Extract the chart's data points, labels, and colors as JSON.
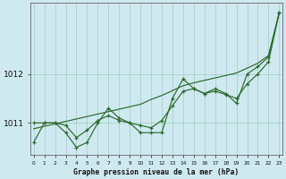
{
  "xlabel": "Graphe pression niveau de la mer (hPa)",
  "bg_color": "#cfe9f0",
  "grid_color": "#9dcfbd",
  "line_color": "#2d6a2d",
  "x_hours": [
    0,
    1,
    2,
    3,
    4,
    5,
    6,
    7,
    8,
    9,
    10,
    11,
    12,
    13,
    14,
    15,
    16,
    17,
    18,
    19,
    20,
    21,
    22,
    23
  ],
  "pressure_raw": [
    1010.6,
    1011.0,
    1011.0,
    1010.8,
    1010.5,
    1010.6,
    1011.0,
    1011.3,
    1011.1,
    1011.0,
    1010.8,
    1010.8,
    1010.8,
    1011.5,
    1011.9,
    1011.7,
    1011.6,
    1011.7,
    1011.6,
    1011.4,
    1012.0,
    1012.15,
    1012.35,
    1013.25
  ],
  "pressure_smooth": [
    1011.0,
    1011.0,
    1011.0,
    1010.95,
    1010.7,
    1010.85,
    1011.05,
    1011.15,
    1011.05,
    1011.0,
    1010.95,
    1010.9,
    1011.05,
    1011.35,
    1011.65,
    1011.7,
    1011.6,
    1011.65,
    1011.58,
    1011.5,
    1011.8,
    1012.0,
    1012.25,
    1013.25
  ],
  "pressure_trend": [
    1010.88,
    1010.93,
    1010.98,
    1011.03,
    1011.08,
    1011.13,
    1011.18,
    1011.23,
    1011.28,
    1011.33,
    1011.38,
    1011.48,
    1011.56,
    1011.66,
    1011.76,
    1011.82,
    1011.87,
    1011.92,
    1011.97,
    1012.02,
    1012.12,
    1012.22,
    1012.38,
    1013.25
  ],
  "ylim_min": 1010.35,
  "ylim_max": 1013.45,
  "yticks": [
    1011,
    1012
  ],
  "xlim_min": -0.3,
  "xlim_max": 23.3
}
